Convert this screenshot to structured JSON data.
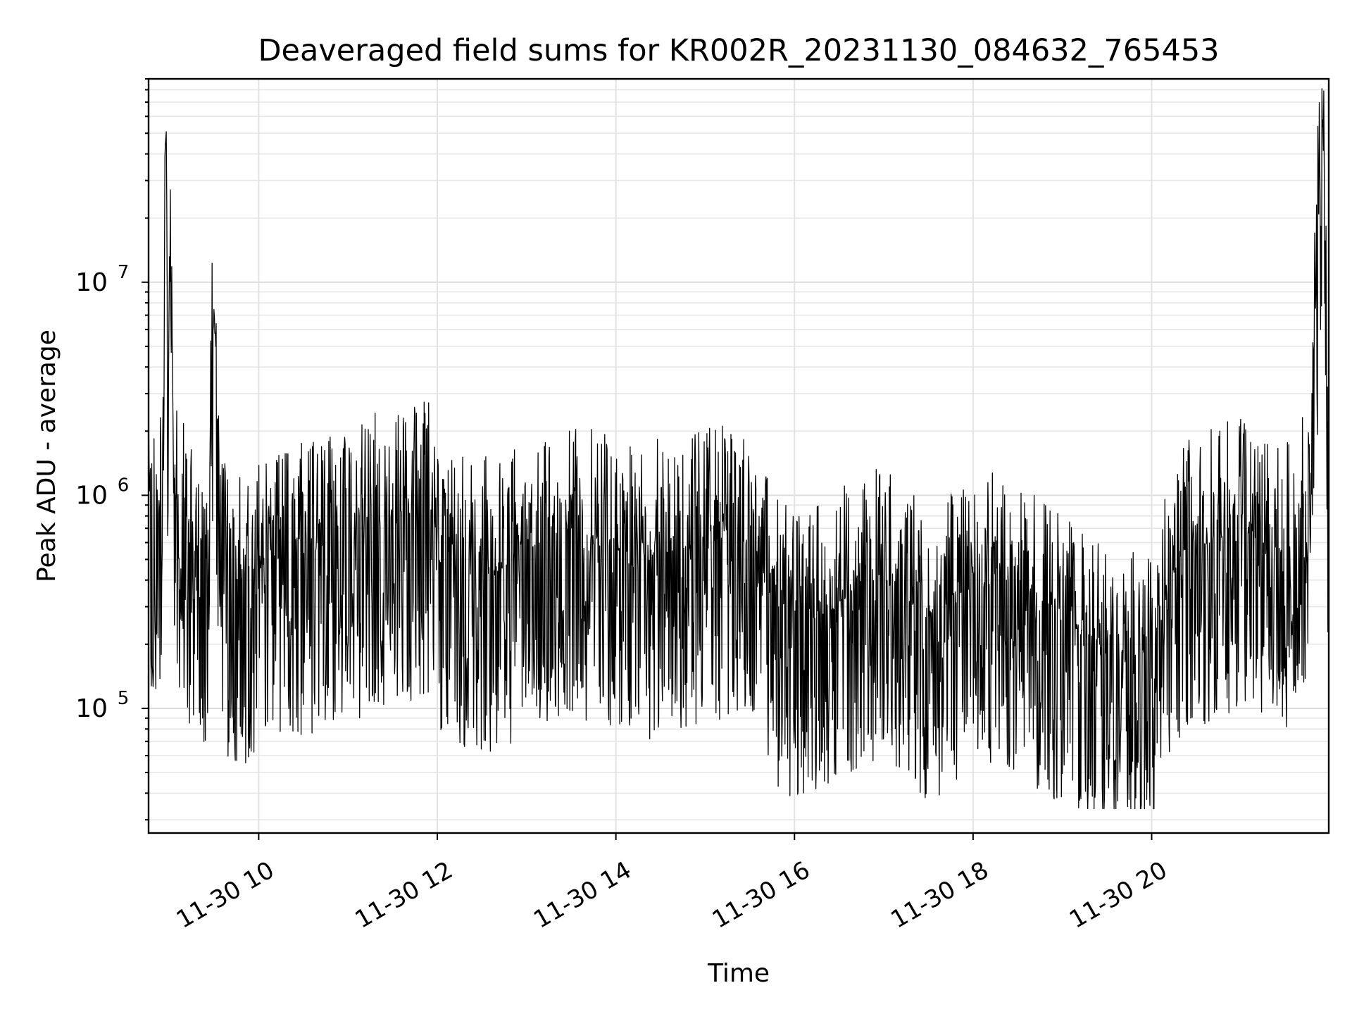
{
  "chart_data": {
    "type": "line",
    "title": "Deaveraged field sums for KR002R_20231130_084632_765453",
    "xlabel": "Time",
    "ylabel": "Peak ADU - average",
    "yscale": "log",
    "ylim": [
      26000,
      90000000
    ],
    "xlim": [
      "2023-11-30 08:46",
      "2023-11-30 21:59"
    ],
    "x_ticks": [
      {
        "time": "2023-11-30 10:00",
        "label": "11-30 10"
      },
      {
        "time": "2023-11-30 12:00",
        "label": "11-30 12"
      },
      {
        "time": "2023-11-30 14:00",
        "label": "11-30 14"
      },
      {
        "time": "2023-11-30 16:00",
        "label": "11-30 16"
      },
      {
        "time": "2023-11-30 18:00",
        "label": "11-30 18"
      },
      {
        "time": "2023-11-30 20:00",
        "label": "11-30 20"
      }
    ],
    "y_ticks": [
      {
        "value": 100000,
        "base": "10",
        "exp": "5"
      },
      {
        "value": 1000000,
        "base": "10",
        "exp": "6"
      },
      {
        "value": 10000000,
        "base": "10",
        "exp": "7"
      }
    ],
    "grid": true,
    "series": [
      {
        "color": "#000000",
        "x": [
          "2023-11-30 08:46",
          "2023-11-30 08:50",
          "2023-11-30 08:54",
          "2023-11-30 08:56",
          "2023-11-30 08:57",
          "2023-11-30 08:58",
          "2023-11-30 08:59",
          "2023-11-30 09:00",
          "2023-11-30 09:03",
          "2023-11-30 09:08",
          "2023-11-30 09:15",
          "2023-11-30 09:25",
          "2023-11-30 09:30",
          "2023-11-30 09:35",
          "2023-11-30 09:40",
          "2023-11-30 09:45",
          "2023-11-30 09:50",
          "2023-11-30 10:00",
          "2023-11-30 10:20",
          "2023-11-30 10:40",
          "2023-11-30 11:00",
          "2023-11-30 11:20",
          "2023-11-30 11:40",
          "2023-11-30 11:55",
          "2023-11-30 12:00",
          "2023-11-30 12:20",
          "2023-11-30 12:40",
          "2023-11-30 13:00",
          "2023-11-30 13:20",
          "2023-11-30 13:40",
          "2023-11-30 14:00",
          "2023-11-30 14:20",
          "2023-11-30 14:40",
          "2023-11-30 15:00",
          "2023-11-30 15:20",
          "2023-11-30 15:35",
          "2023-11-30 15:50",
          "2023-11-30 16:10",
          "2023-11-30 16:30",
          "2023-11-30 16:50",
          "2023-11-30 17:10",
          "2023-11-30 17:30",
          "2023-11-30 17:50",
          "2023-11-30 18:00",
          "2023-11-30 18:20",
          "2023-11-30 18:40",
          "2023-11-30 19:00",
          "2023-11-30 19:20",
          "2023-11-30 19:40",
          "2023-11-30 20:00",
          "2023-11-30 20:20",
          "2023-11-30 20:40",
          "2023-11-30 21:00",
          "2023-11-30 21:20",
          "2023-11-30 21:35",
          "2023-11-30 21:45",
          "2023-11-30 21:55",
          "2023-11-30 21:59"
        ],
        "y": [
          900000,
          750000,
          850000,
          1000000,
          42000000,
          52000000,
          1200000,
          13500000,
          1000000,
          800000,
          550000,
          450000,
          7800000,
          420000,
          400000,
          380000,
          350000,
          450000,
          500000,
          550000,
          600000,
          700000,
          750000,
          800000,
          550000,
          450000,
          420000,
          550000,
          650000,
          600000,
          550000,
          500000,
          550000,
          600000,
          650000,
          500000,
          280000,
          250000,
          300000,
          400000,
          350000,
          250000,
          300000,
          350000,
          400000,
          300000,
          250000,
          200000,
          160000,
          200000,
          550000,
          600000,
          700000,
          550000,
          500000,
          1000000,
          60000000,
          800000
        ]
      }
    ]
  }
}
